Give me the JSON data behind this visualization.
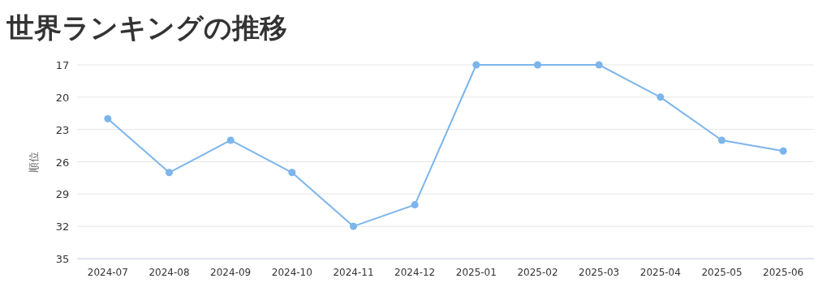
{
  "chart_data": {
    "type": "line",
    "title": "世界ランキングの推移",
    "ylabel": "順位",
    "categories": [
      "2024-07",
      "2024-08",
      "2024-09",
      "2024-10",
      "2024-11",
      "2024-12",
      "2025-01",
      "2025-02",
      "2025-03",
      "2025-04",
      "2025-05",
      "2025-06"
    ],
    "series": [
      {
        "color": "#7cb5ec",
        "values": [
          22,
          27,
          24,
          27,
          32,
          30,
          17,
          17,
          17,
          20,
          24,
          25
        ]
      }
    ],
    "ylim": [
      35,
      17
    ],
    "yticks": [
      17,
      20,
      23,
      26,
      29,
      32,
      35
    ],
    "grid": "y",
    "marker": "circle",
    "line_style": "solid"
  }
}
